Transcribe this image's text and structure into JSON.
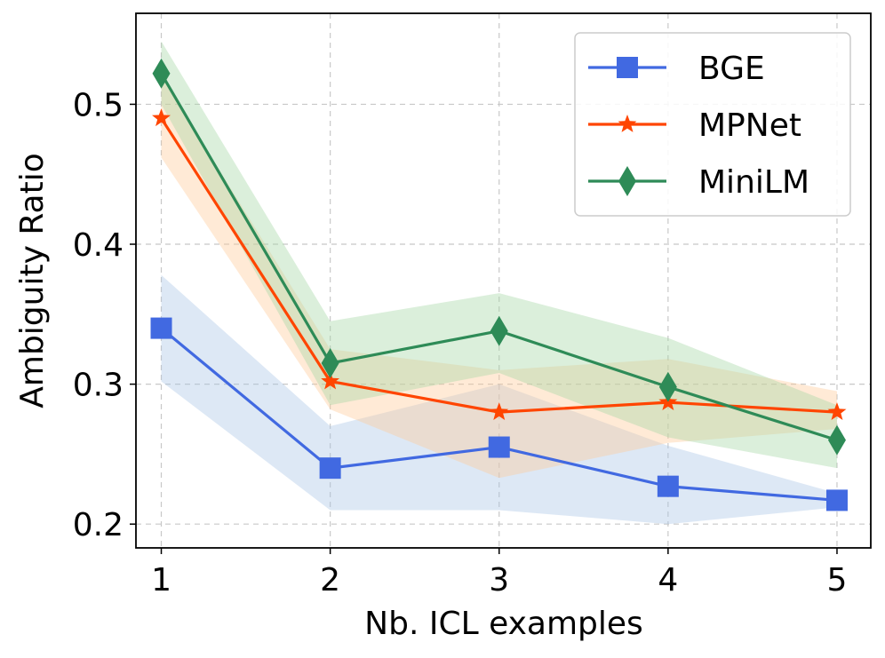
{
  "chart_data": {
    "type": "line",
    "title": "",
    "xlabel": "Nb. ICL examples",
    "ylabel": "Ambiguity Ratio",
    "x": [
      1,
      2,
      3,
      4,
      5
    ],
    "xlim": [
      0.85,
      5.2
    ],
    "ylim": [
      0.183,
      0.565
    ],
    "xticks": [
      1,
      2,
      3,
      4,
      5
    ],
    "yticks": [
      0.2,
      0.3,
      0.4,
      0.5
    ],
    "ytick_labels": [
      "0.2",
      "0.3",
      "0.4",
      "0.5"
    ],
    "grid": true,
    "legend_position": "top-right",
    "series": [
      {
        "name": "BGE",
        "color": "#4169e1",
        "band_color": "#a9c6e6",
        "marker": "square",
        "values": [
          0.34,
          0.24,
          0.255,
          0.227,
          0.217
        ],
        "lower": [
          0.302,
          0.21,
          0.21,
          0.2,
          0.212
        ],
        "upper": [
          0.378,
          0.27,
          0.3,
          0.256,
          0.222
        ]
      },
      {
        "name": "MPNet",
        "color": "#ff4500",
        "band_color": "#ffcb99",
        "marker": "star",
        "values": [
          0.49,
          0.302,
          0.28,
          0.287,
          0.28
        ],
        "lower": [
          0.462,
          0.282,
          0.233,
          0.258,
          0.268
        ],
        "upper": [
          0.52,
          0.325,
          0.31,
          0.318,
          0.295
        ]
      },
      {
        "name": "MiniLM",
        "color": "#2e8b57",
        "band_color": "#a6d6a6",
        "marker": "diamond",
        "values": [
          0.522,
          0.315,
          0.338,
          0.298,
          0.26
        ],
        "lower": [
          0.5,
          0.285,
          0.308,
          0.262,
          0.24
        ],
        "upper": [
          0.545,
          0.345,
          0.365,
          0.333,
          0.285
        ]
      }
    ]
  }
}
